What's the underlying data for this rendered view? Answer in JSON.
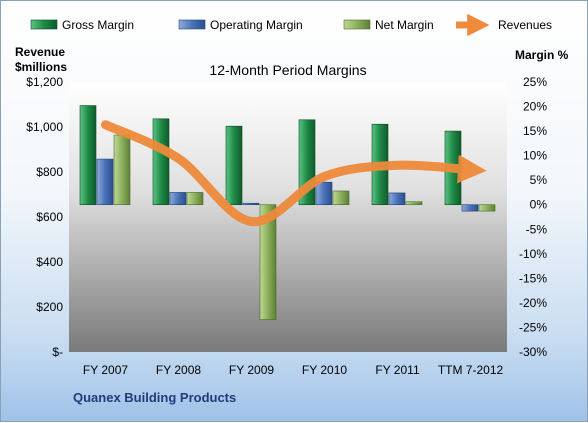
{
  "chart_data": {
    "type": "bar",
    "title": "12-Month Period Margins",
    "company": "Quanex Building Products",
    "left_axis": {
      "label_line1": "Revenue",
      "label_line2": "$millions",
      "ylim": [
        0,
        1200
      ],
      "ticks": [
        "$-",
        "$200",
        "$400",
        "$600",
        "$800",
        "$1,000",
        "$1,200"
      ]
    },
    "right_axis": {
      "label": "Margin %",
      "ylim": [
        -30,
        25
      ],
      "ticks": [
        "-30%",
        "-25%",
        "-20%",
        "-15%",
        "-10%",
        "-5%",
        "0%",
        "5%",
        "10%",
        "15%",
        "20%",
        "25%"
      ]
    },
    "categories": [
      "FY 2007",
      "FY 2008",
      "FY 2009",
      "FY 2010",
      "FY 2011",
      "TTM 7-2012"
    ],
    "series": [
      {
        "name": "Gross Margin",
        "axis": "right",
        "values": [
          20.2,
          17.5,
          16.0,
          17.3,
          16.4,
          15.0
        ]
      },
      {
        "name": "Operating Margin",
        "axis": "right",
        "values": [
          9.3,
          2.5,
          0.3,
          4.6,
          2.4,
          -1.3
        ]
      },
      {
        "name": "Net Margin",
        "axis": "right",
        "values": [
          14.2,
          2.5,
          -23.4,
          2.8,
          0.6,
          -1.3
        ]
      },
      {
        "name": "Revenues",
        "axis": "left",
        "type": "line",
        "values": [
          1010,
          860,
          580,
          780,
          830,
          810
        ]
      }
    ],
    "legend_position": "top",
    "grid": false
  },
  "colors": {
    "gross": "#1e8a46",
    "operating": "#4a73b8",
    "net": "#8bb05a",
    "revenue": "#ee8a3a"
  }
}
